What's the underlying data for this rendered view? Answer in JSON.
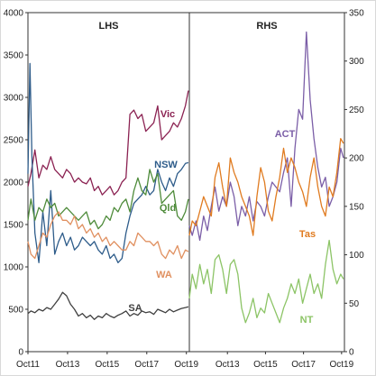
{
  "chart_data": [
    {
      "panel": "LHS",
      "type": "line",
      "title": "LHS",
      "axis_side": "left",
      "ylim": [
        0,
        4000
      ],
      "yticks": [
        0,
        500,
        1000,
        1500,
        2000,
        2500,
        3000,
        3500,
        4000
      ],
      "xticks": [
        "Oct11",
        "Oct13",
        "Oct15",
        "Oct17",
        "Oct19"
      ],
      "xlim": [
        2011.75,
        2019.9
      ],
      "series": [
        {
          "name": "Vic",
          "color": "#8B2252",
          "x": [
            2011.75,
            2011.9,
            2012.1,
            2012.3,
            2012.5,
            2012.7,
            2012.9,
            2013.1,
            2013.3,
            2013.5,
            2013.7,
            2013.9,
            2014.1,
            2014.3,
            2014.5,
            2014.7,
            2014.9,
            2015.1,
            2015.3,
            2015.5,
            2015.7,
            2015.9,
            2016.1,
            2016.3,
            2016.5,
            2016.7,
            2016.9,
            2017.1,
            2017.3,
            2017.5,
            2017.7,
            2017.9,
            2018.1,
            2018.3,
            2018.5,
            2018.7,
            2018.9,
            2019.1,
            2019.3,
            2019.5,
            2019.7,
            2019.85
          ],
          "values": [
            1950,
            2100,
            2380,
            2050,
            2200,
            2150,
            2300,
            2150,
            2100,
            2050,
            2150,
            2100,
            2000,
            2050,
            2000,
            1980,
            2050,
            1900,
            1950,
            1850,
            1900,
            1950,
            1850,
            1900,
            2000,
            2050,
            2800,
            2850,
            2750,
            2800,
            2600,
            2650,
            2700,
            2900,
            2500,
            2550,
            2600,
            2700,
            2650,
            2750,
            2900,
            3080
          ]
        },
        {
          "name": "NSW",
          "color": "#2E5C8A",
          "x": [
            2011.75,
            2011.85,
            2011.95,
            2012.1,
            2012.3,
            2012.5,
            2012.7,
            2012.9,
            2013.1,
            2013.3,
            2013.5,
            2013.7,
            2013.9,
            2014.1,
            2014.3,
            2014.5,
            2014.7,
            2014.9,
            2015.1,
            2015.3,
            2015.5,
            2015.7,
            2015.9,
            2016.1,
            2016.3,
            2016.5,
            2016.7,
            2016.9,
            2017.1,
            2017.3,
            2017.5,
            2017.7,
            2017.9,
            2018.1,
            2018.3,
            2018.5,
            2018.7,
            2018.9,
            2019.1,
            2019.3,
            2019.5,
            2019.7,
            2019.85
          ],
          "values": [
            2100,
            3400,
            2300,
            1400,
            1050,
            1650,
            1250,
            1900,
            1150,
            1300,
            1400,
            1250,
            1350,
            1200,
            1250,
            1350,
            1300,
            1250,
            1300,
            1200,
            1150,
            1250,
            1100,
            1150,
            1050,
            1100,
            1400,
            1600,
            1750,
            1800,
            1850,
            1950,
            1850,
            1900,
            2150,
            2000,
            1900,
            2050,
            1950,
            2100,
            2150,
            2220,
            2230
          ]
        },
        {
          "name": "Qld",
          "color": "#4E8B3A",
          "x": [
            2011.75,
            2011.9,
            2012.1,
            2012.3,
            2012.5,
            2012.7,
            2012.9,
            2013.1,
            2013.3,
            2013.5,
            2013.7,
            2013.9,
            2014.1,
            2014.3,
            2014.5,
            2014.7,
            2014.9,
            2015.1,
            2015.3,
            2015.5,
            2015.7,
            2015.9,
            2016.1,
            2016.3,
            2016.5,
            2016.7,
            2016.9,
            2017.1,
            2017.3,
            2017.5,
            2017.7,
            2017.9,
            2018.1,
            2018.3,
            2018.5,
            2018.7,
            2018.9,
            2019.1,
            2019.3,
            2019.5,
            2019.7,
            2019.85
          ],
          "values": [
            1550,
            1800,
            1550,
            1700,
            1650,
            1800,
            1700,
            1750,
            1600,
            1650,
            1700,
            1650,
            1600,
            1550,
            1600,
            1650,
            1500,
            1550,
            1450,
            1500,
            1600,
            1550,
            1700,
            1650,
            1750,
            1800,
            1650,
            1900,
            2050,
            1900,
            1850,
            2150,
            2000,
            2100,
            1750,
            1800,
            1850,
            1900,
            1600,
            1550,
            1650,
            1800
          ]
        },
        {
          "name": "WA",
          "color": "#E09060",
          "x": [
            2011.75,
            2011.9,
            2012.1,
            2012.3,
            2012.5,
            2012.7,
            2012.9,
            2013.1,
            2013.3,
            2013.5,
            2013.7,
            2013.9,
            2014.1,
            2014.3,
            2014.5,
            2014.7,
            2014.9,
            2015.1,
            2015.3,
            2015.5,
            2015.7,
            2015.9,
            2016.1,
            2016.3,
            2016.5,
            2016.7,
            2016.9,
            2017.1,
            2017.3,
            2017.5,
            2017.7,
            2017.9,
            2018.1,
            2018.3,
            2018.5,
            2018.7,
            2018.9,
            2019.1,
            2019.3,
            2019.5,
            2019.7,
            2019.85
          ],
          "values": [
            1300,
            1150,
            1100,
            1250,
            1400,
            1350,
            1500,
            1600,
            1650,
            1550,
            1550,
            1500,
            1600,
            1450,
            1500,
            1400,
            1450,
            1350,
            1400,
            1300,
            1350,
            1250,
            1300,
            1250,
            1200,
            1200,
            1300,
            1250,
            1400,
            1350,
            1300,
            1300,
            1250,
            1300,
            1150,
            1100,
            1200,
            1150,
            1250,
            1100,
            1200,
            1180
          ]
        },
        {
          "name": "SA",
          "color": "#404040",
          "x": [
            2011.75,
            2011.9,
            2012.1,
            2012.3,
            2012.5,
            2012.7,
            2012.9,
            2013.1,
            2013.3,
            2013.5,
            2013.7,
            2013.9,
            2014.1,
            2014.3,
            2014.5,
            2014.7,
            2014.9,
            2015.1,
            2015.3,
            2015.5,
            2015.7,
            2015.9,
            2016.1,
            2016.3,
            2016.5,
            2016.7,
            2016.9,
            2017.1,
            2017.3,
            2017.5,
            2017.7,
            2017.9,
            2018.1,
            2018.3,
            2018.5,
            2018.7,
            2018.9,
            2019.1,
            2019.3,
            2019.5,
            2019.7,
            2019.85
          ],
          "values": [
            450,
            480,
            460,
            500,
            480,
            520,
            500,
            560,
            620,
            700,
            660,
            560,
            500,
            420,
            450,
            400,
            430,
            380,
            420,
            400,
            450,
            420,
            400,
            430,
            450,
            480,
            420,
            450,
            430,
            480,
            460,
            470,
            440,
            500,
            480,
            460,
            500,
            470,
            490,
            510,
            520,
            530
          ]
        }
      ]
    },
    {
      "panel": "RHS",
      "type": "line",
      "title": "RHS",
      "axis_side": "right",
      "ylim": [
        0,
        350
      ],
      "yticks": [
        0,
        50,
        100,
        150,
        200,
        250,
        300,
        350
      ],
      "xticks": [
        "Oct13",
        "Oct15",
        "Oct17",
        "Oct19"
      ],
      "xlim": [
        2011.75,
        2019.9
      ],
      "series": [
        {
          "name": "ACT",
          "color": "#7B5EA7",
          "x": [
            2011.75,
            2011.9,
            2012.1,
            2012.3,
            2012.5,
            2012.7,
            2012.9,
            2013.1,
            2013.3,
            2013.5,
            2013.7,
            2013.9,
            2014.1,
            2014.3,
            2014.5,
            2014.7,
            2014.9,
            2015.1,
            2015.3,
            2015.5,
            2015.7,
            2015.9,
            2016.1,
            2016.3,
            2016.5,
            2016.7,
            2016.9,
            2017.1,
            2017.3,
            2017.5,
            2017.7,
            2017.9,
            2018.1,
            2018.3,
            2018.5,
            2018.7,
            2018.9,
            2019.1,
            2019.3,
            2019.5,
            2019.7,
            2019.85
          ],
          "values": [
            130,
            120,
            135,
            115,
            140,
            125,
            150,
            170,
            145,
            160,
            150,
            175,
            160,
            130,
            150,
            140,
            160,
            135,
            155,
            150,
            140,
            160,
            175,
            170,
            165,
            185,
            200,
            150,
            210,
            250,
            240,
            330,
            260,
            220,
            190,
            170,
            180,
            150,
            160,
            175,
            210,
            200
          ]
        },
        {
          "name": "Tas",
          "color": "#E07B20",
          "x": [
            2011.75,
            2011.9,
            2012.1,
            2012.3,
            2012.5,
            2012.7,
            2012.9,
            2013.1,
            2013.3,
            2013.5,
            2013.7,
            2013.9,
            2014.1,
            2014.3,
            2014.5,
            2014.7,
            2014.9,
            2015.1,
            2015.3,
            2015.5,
            2015.7,
            2015.9,
            2016.1,
            2016.3,
            2016.5,
            2016.7,
            2016.9,
            2017.1,
            2017.3,
            2017.5,
            2017.7,
            2017.9,
            2018.1,
            2018.3,
            2018.5,
            2018.7,
            2018.9,
            2019.1,
            2019.3,
            2019.5,
            2019.7,
            2019.85
          ],
          "values": [
            120,
            135,
            130,
            145,
            160,
            150,
            140,
            180,
            195,
            170,
            150,
            200,
            185,
            175,
            160,
            150,
            140,
            120,
            160,
            190,
            175,
            145,
            135,
            160,
            180,
            210,
            185,
            200,
            190,
            175,
            165,
            150,
            180,
            200,
            170,
            150,
            140,
            170,
            160,
            185,
            220,
            215
          ]
        },
        {
          "name": "NT",
          "color": "#8CC466",
          "x": [
            2011.75,
            2011.9,
            2012.1,
            2012.3,
            2012.5,
            2012.7,
            2012.9,
            2013.1,
            2013.3,
            2013.5,
            2013.7,
            2013.9,
            2014.1,
            2014.3,
            2014.5,
            2014.7,
            2014.9,
            2015.1,
            2015.3,
            2015.5,
            2015.7,
            2015.9,
            2016.1,
            2016.3,
            2016.5,
            2016.7,
            2016.9,
            2017.1,
            2017.3,
            2017.5,
            2017.7,
            2017.9,
            2018.1,
            2018.3,
            2018.5,
            2018.7,
            2018.9,
            2019.1,
            2019.3,
            2019.5,
            2019.7,
            2019.85
          ],
          "values": [
            55,
            80,
            65,
            90,
            70,
            85,
            60,
            95,
            100,
            85,
            60,
            90,
            95,
            80,
            45,
            30,
            40,
            55,
            35,
            45,
            40,
            60,
            50,
            40,
            30,
            45,
            55,
            70,
            60,
            75,
            50,
            65,
            80,
            60,
            70,
            55,
            90,
            115,
            85,
            70,
            80,
            75
          ]
        }
      ]
    }
  ]
}
